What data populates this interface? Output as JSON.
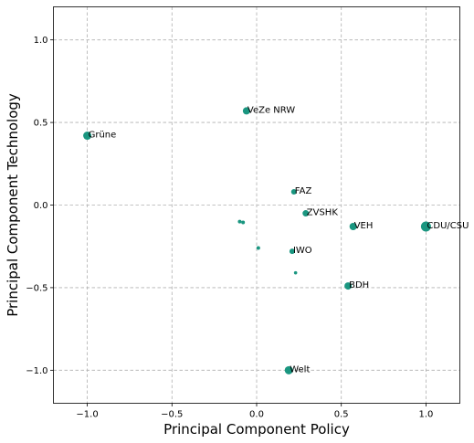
{
  "chart_data": {
    "type": "scatter",
    "xlabel": "Principal Component Policy",
    "ylabel": "Principal Component Technology",
    "xlim": [
      -1.2,
      1.2
    ],
    "ylim": [
      -1.2,
      1.2
    ],
    "xticks": [
      -1.0,
      -0.5,
      0.0,
      0.5,
      1.0
    ],
    "yticks": [
      -1.0,
      -0.5,
      0.0,
      0.5,
      1.0
    ],
    "xtick_labels": [
      "−1.0",
      "−0.5",
      "0.0",
      "0.5",
      "1.0"
    ],
    "ytick_labels": [
      "−1.0",
      "−0.5",
      "0.0",
      "0.5",
      "1.0"
    ],
    "grid": true,
    "marker_color": "#1a9680",
    "points": [
      {
        "x": -1.0,
        "y": 0.42,
        "size": 4.5,
        "label": "Grüne"
      },
      {
        "x": -0.06,
        "y": 0.57,
        "size": 4.0,
        "label": "VeZe NRW"
      },
      {
        "x": 0.22,
        "y": 0.08,
        "size": 3.0,
        "label": "FAZ"
      },
      {
        "x": 0.29,
        "y": -0.05,
        "size": 3.5,
        "label": "ZVSHK"
      },
      {
        "x": 0.57,
        "y": -0.13,
        "size": 4.0,
        "label": "VEH"
      },
      {
        "x": 1.0,
        "y": -0.13,
        "size": 5.5,
        "label": "CDU/CSU"
      },
      {
        "x": 0.21,
        "y": -0.28,
        "size": 3.0,
        "label": "IWO"
      },
      {
        "x": 0.54,
        "y": -0.49,
        "size": 4.0,
        "label": "BDH"
      },
      {
        "x": 0.19,
        "y": -1.0,
        "size": 4.5,
        "label": "Welt"
      },
      {
        "x": -0.1,
        "y": -0.1,
        "size": 2.0,
        "label": ""
      },
      {
        "x": -0.08,
        "y": -0.105,
        "size": 2.0,
        "label": ""
      },
      {
        "x": 0.01,
        "y": -0.26,
        "size": 2.0,
        "label": ""
      },
      {
        "x": 0.23,
        "y": -0.41,
        "size": 1.8,
        "label": ""
      }
    ]
  }
}
